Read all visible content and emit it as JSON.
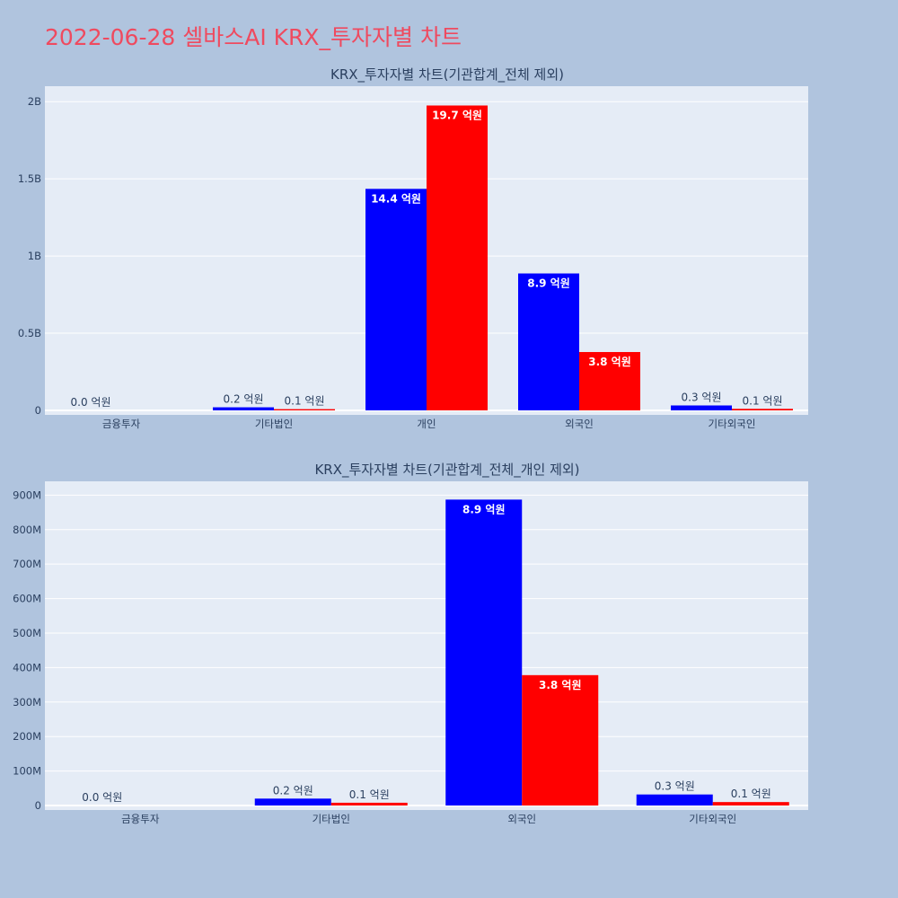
{
  "title": "2022-06-28 셀바스AI KRX_투자자별 차트",
  "colors": {
    "buy": "#0000ff",
    "sell": "#ff0000"
  },
  "chart_data": [
    {
      "type": "bar",
      "title": "KRX_투자자별 차트(기관합계_전체 제외)",
      "categories": [
        "금융투자",
        "기타법인",
        "개인",
        "외국인",
        "기타외국인"
      ],
      "ylim": [
        0,
        2100000000
      ],
      "yticks": [
        {
          "value": 0,
          "label": "0"
        },
        {
          "value": 500000000,
          "label": "0.5B"
        },
        {
          "value": 1000000000,
          "label": "1B"
        },
        {
          "value": 1500000000,
          "label": "1.5B"
        },
        {
          "value": 2000000000,
          "label": "2B"
        }
      ],
      "series": [
        {
          "color": "#0000ff",
          "values": [
            0,
            20000000,
            1435000000,
            887000000,
            32000000
          ],
          "labels": [
            "0.0 억원",
            "0.2 억원",
            "14.4 억원",
            "8.9 억원",
            "0.3 억원"
          ]
        },
        {
          "color": "#ff0000",
          "values": [
            0,
            8000000,
            1975000000,
            378000000,
            10000000
          ],
          "labels": [
            "",
            "0.1 억원",
            "19.7 억원",
            "3.8 억원",
            "0.1 억원"
          ]
        }
      ]
    },
    {
      "type": "bar",
      "title": "KRX_투자자별 차트(기관합계_전체_개인 제외)",
      "categories": [
        "금융투자",
        "기타법인",
        "외국인",
        "기타외국인"
      ],
      "ylim": [
        0,
        940000000
      ],
      "yticks": [
        {
          "value": 0,
          "label": "0"
        },
        {
          "value": 100000000,
          "label": "100M"
        },
        {
          "value": 200000000,
          "label": "200M"
        },
        {
          "value": 300000000,
          "label": "300M"
        },
        {
          "value": 400000000,
          "label": "400M"
        },
        {
          "value": 500000000,
          "label": "500M"
        },
        {
          "value": 600000000,
          "label": "600M"
        },
        {
          "value": 700000000,
          "label": "700M"
        },
        {
          "value": 800000000,
          "label": "800M"
        },
        {
          "value": 900000000,
          "label": "900M"
        }
      ],
      "series": [
        {
          "color": "#0000ff",
          "values": [
            0,
            20000000,
            887000000,
            32000000
          ],
          "labels": [
            "0.0 억원",
            "0.2 억원",
            "8.9 억원",
            "0.3 억원"
          ]
        },
        {
          "color": "#ff0000",
          "values": [
            0,
            8000000,
            378000000,
            10000000
          ],
          "labels": [
            "",
            "0.1 억원",
            "3.8 억원",
            "0.1 억원"
          ]
        }
      ]
    }
  ]
}
